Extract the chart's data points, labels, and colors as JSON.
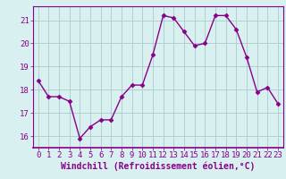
{
  "hours": [
    0,
    1,
    2,
    3,
    4,
    5,
    6,
    7,
    8,
    9,
    10,
    11,
    12,
    13,
    14,
    15,
    16,
    17,
    18,
    19,
    20,
    21,
    22,
    23
  ],
  "values": [
    18.4,
    17.7,
    17.7,
    17.5,
    15.9,
    16.4,
    16.7,
    16.7,
    17.7,
    18.2,
    18.2,
    19.5,
    21.2,
    21.1,
    20.5,
    19.9,
    20.0,
    21.2,
    21.2,
    20.6,
    19.4,
    17.9,
    18.1,
    17.4
  ],
  "line_color": "#880088",
  "marker": "D",
  "marker_size": 2.5,
  "bg_color": "#d8f0f0",
  "grid_color": "#aacccc",
  "tick_color": "#880088",
  "xlabel": "Windchill (Refroidissement éolien,°C)",
  "xlabel_color": "#880088",
  "ylim": [
    15.5,
    21.6
  ],
  "xlim": [
    -0.5,
    23.5
  ],
  "yticks": [
    16,
    17,
    18,
    19,
    20,
    21
  ],
  "xticks": [
    0,
    1,
    2,
    3,
    4,
    5,
    6,
    7,
    8,
    9,
    10,
    11,
    12,
    13,
    14,
    15,
    16,
    17,
    18,
    19,
    20,
    21,
    22,
    23
  ],
  "font_size_ticks": 6.5,
  "font_size_xlabel": 7.0,
  "linewidth": 1.0
}
